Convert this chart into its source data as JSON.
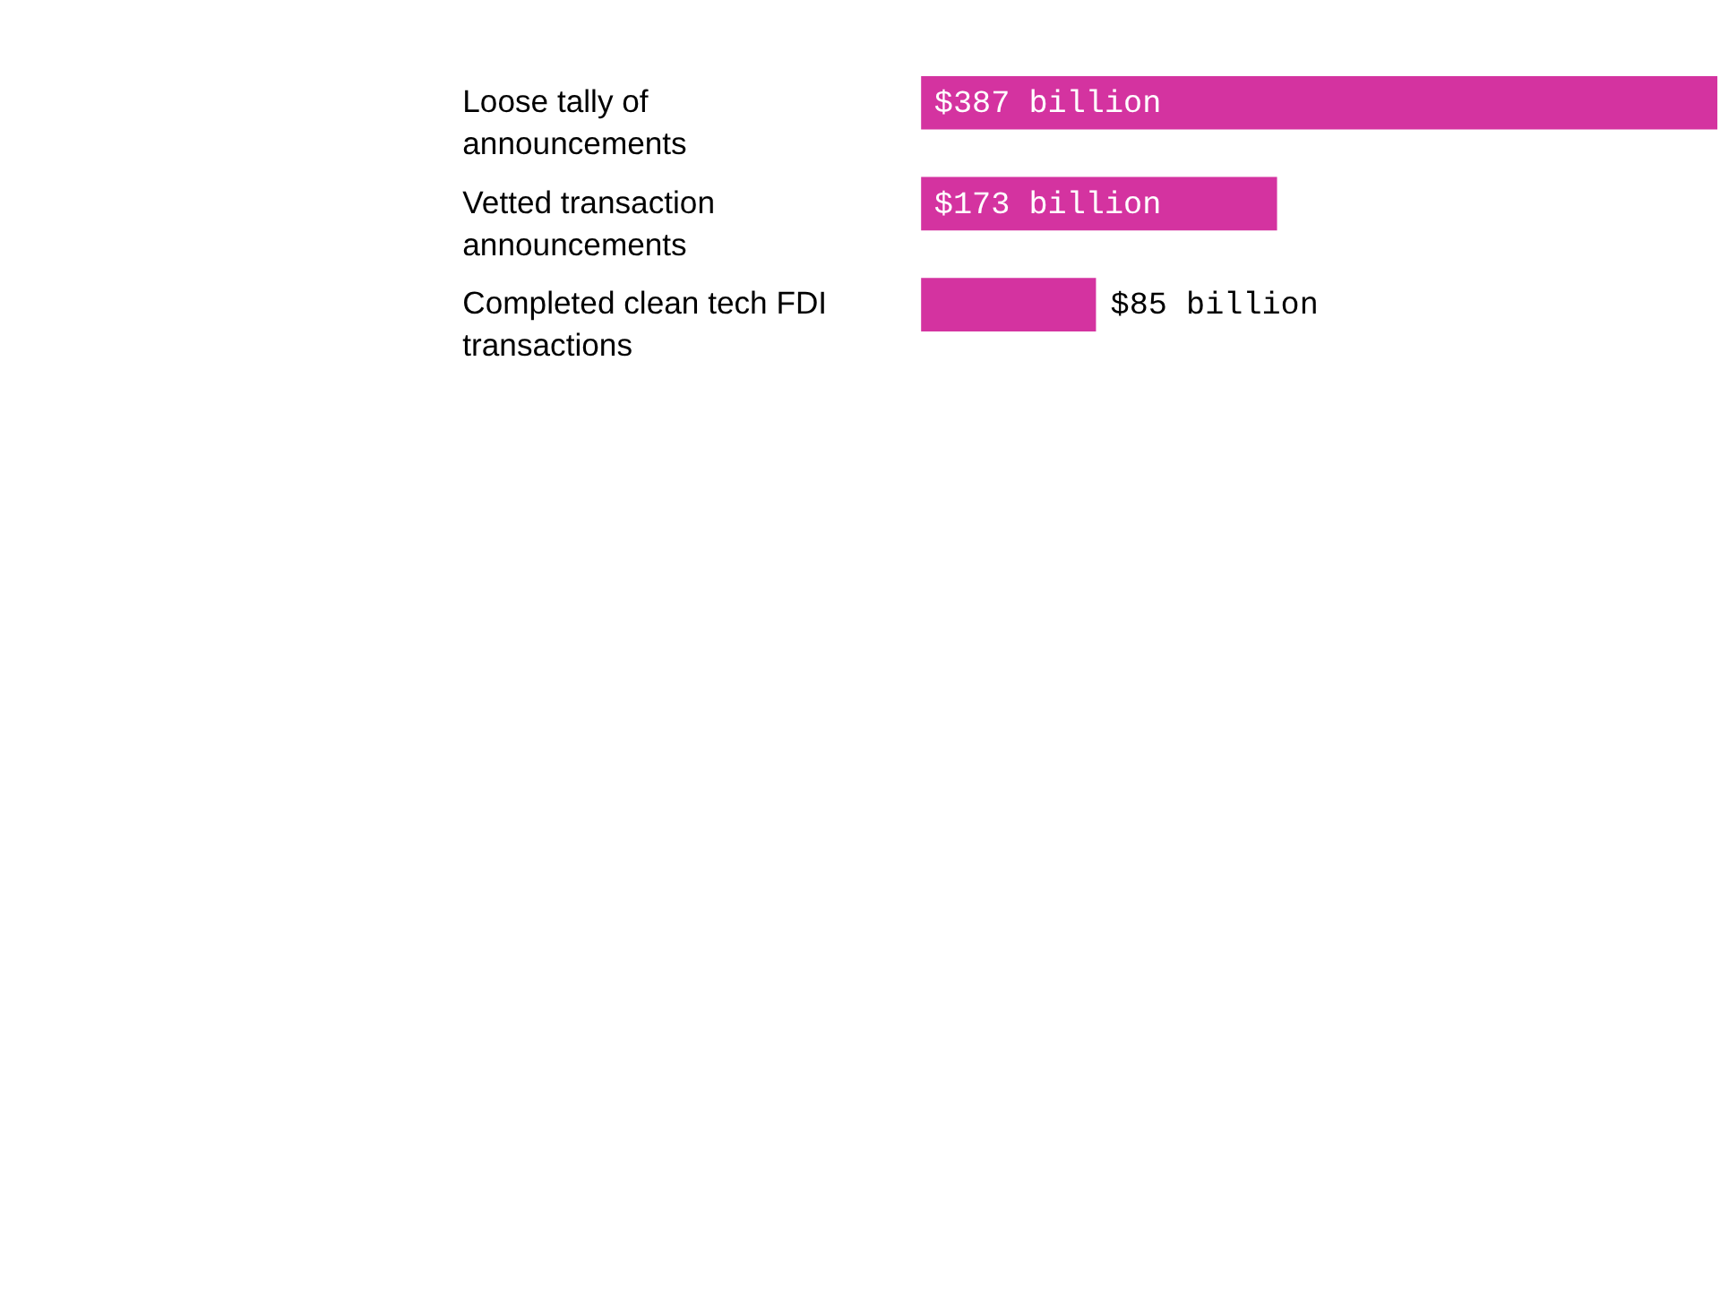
{
  "chart_data": {
    "type": "bar",
    "orientation": "horizontal",
    "categories": [
      "Loose tally of announcements",
      "Vetted transaction announcements",
      "Completed clean tech FDI transactions"
    ],
    "values": [
      387,
      173,
      85
    ],
    "color": "#d433a0",
    "value_labels": [
      "$387 billion",
      "$173 billion",
      "$85 billion"
    ]
  }
}
